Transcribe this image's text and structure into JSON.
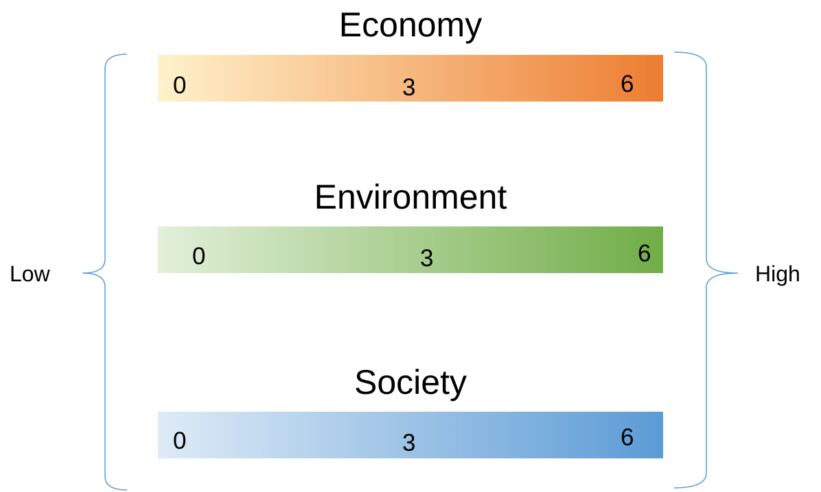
{
  "scales": [
    {
      "title": "Economy",
      "ticks": [
        "0",
        "3",
        "6"
      ],
      "color_start": "#FFF2CC",
      "color_end": "#ED7D31"
    },
    {
      "title": "Environment",
      "ticks": [
        "0",
        "3",
        "6"
      ],
      "color_start": "#E2F0D9",
      "color_end": "#70AD47"
    },
    {
      "title": "Society",
      "ticks": [
        "0",
        "3",
        "6"
      ],
      "color_start": "#DEEBF7",
      "color_end": "#5B9BD5"
    }
  ],
  "left_label": "Low",
  "right_label": "High",
  "brace_color": "#5B9BD5"
}
